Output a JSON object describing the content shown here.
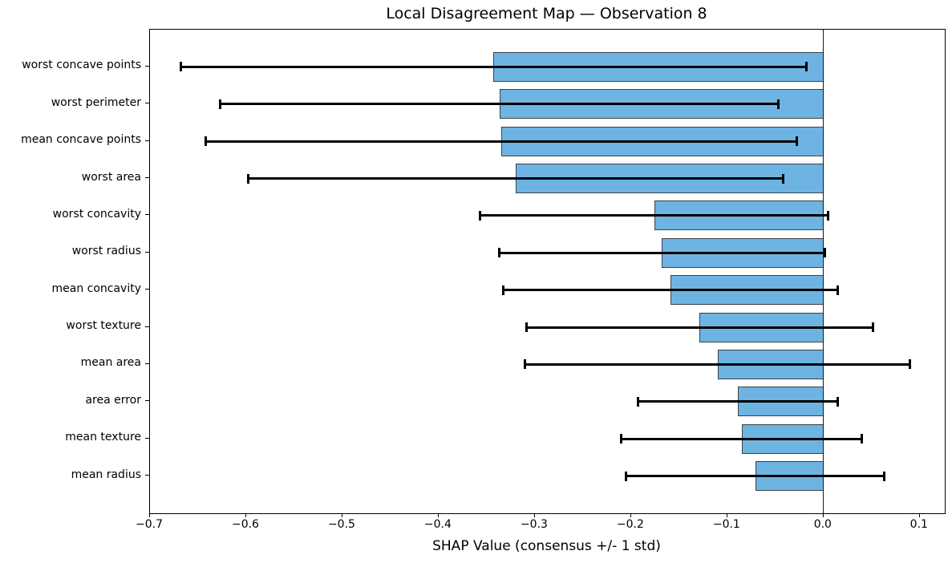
{
  "chart_data": {
    "type": "bar",
    "orientation": "horizontal",
    "title": "Local Disagreement Map — Observation 8",
    "xlabel": "SHAP Value (consensus +/- 1 std)",
    "ylabel": "",
    "categories": [
      "worst concave points",
      "worst perimeter",
      "mean concave points",
      "worst area",
      "worst concavity",
      "worst radius",
      "mean concavity",
      "worst texture",
      "mean area",
      "area error",
      "mean texture",
      "mean radius"
    ],
    "series": [
      {
        "name": "consensus SHAP value",
        "values": [
          -0.343,
          -0.337,
          -0.335,
          -0.32,
          -0.176,
          -0.168,
          -0.159,
          -0.129,
          -0.11,
          -0.089,
          -0.085,
          -0.071
        ],
        "std": [
          0.325,
          0.29,
          0.307,
          0.278,
          0.181,
          0.169,
          0.174,
          0.18,
          0.2,
          0.104,
          0.125,
          0.134
        ]
      }
    ],
    "xlim": [
      -0.7,
      0.126
    ],
    "xticks": [
      -0.7,
      -0.6,
      -0.5,
      -0.4,
      -0.3,
      -0.2,
      -0.1,
      0.0,
      0.1
    ],
    "xtick_labels": [
      "−0.7",
      "−0.6",
      "−0.5",
      "−0.4",
      "−0.3",
      "−0.2",
      "−0.1",
      "0.0",
      "0.1"
    ],
    "grid": false,
    "legend": null,
    "zero_line": true,
    "colors": {
      "bar_fill": "#6EB4E3",
      "bar_edge": "#3b4047",
      "error_bar": "#000000",
      "axis": "#000000",
      "background": "#ffffff"
    }
  }
}
